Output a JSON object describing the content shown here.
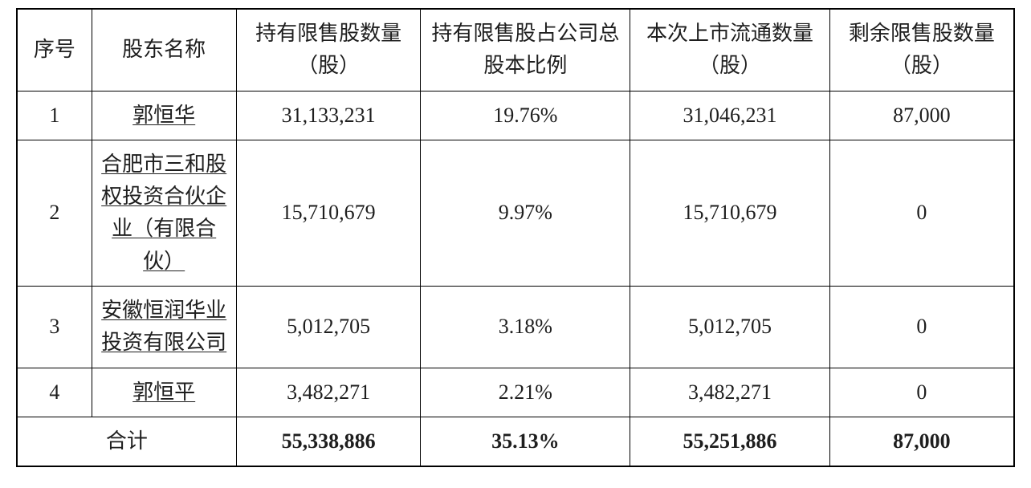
{
  "table": {
    "background_color": "#ffffff",
    "border_color": "#000000",
    "text_color": "#1e1e1e",
    "font_family": "SimSun",
    "header_fontsize": 26,
    "cell_fontsize": 26,
    "columns": [
      {
        "key": "seq",
        "label": "序号",
        "width_pct": 7.5
      },
      {
        "key": "name",
        "label": "股东名称",
        "width_pct": 14.5
      },
      {
        "key": "holding",
        "label": "持有限售股数量（股）",
        "width_pct": 18.5
      },
      {
        "key": "pct",
        "label": "持有限售股占公司总股本比例",
        "width_pct": 21
      },
      {
        "key": "flow",
        "label": "本次上市流通数量（股）",
        "width_pct": 20
      },
      {
        "key": "remaining",
        "label": "剩余限售股数量（股）",
        "width_pct": 18.5
      }
    ],
    "rows": [
      {
        "seq": "1",
        "name": "郭恒华",
        "name_underlined": true,
        "holding": "31,133,231",
        "pct": "19.76%",
        "flow": "31,046,231",
        "remaining": "87,000"
      },
      {
        "seq": "2",
        "name": "合肥市三和股权投资合伙企业（有限合伙）",
        "name_underlined": true,
        "holding": "15,710,679",
        "pct": "9.97%",
        "flow": "15,710,679",
        "remaining": "0"
      },
      {
        "seq": "3",
        "name": "安徽恒润华业投资有限公司",
        "name_underlined": true,
        "holding": "5,012,705",
        "pct": "3.18%",
        "flow": "5,012,705",
        "remaining": "0"
      },
      {
        "seq": "4",
        "name": "郭恒平",
        "name_underlined": true,
        "holding": "3,482,271",
        "pct": "2.21%",
        "flow": "3,482,271",
        "remaining": "0"
      }
    ],
    "total": {
      "label": "合计",
      "holding": "55,338,886",
      "pct": "35.13%",
      "flow": "55,251,886",
      "remaining": "87,000"
    }
  }
}
